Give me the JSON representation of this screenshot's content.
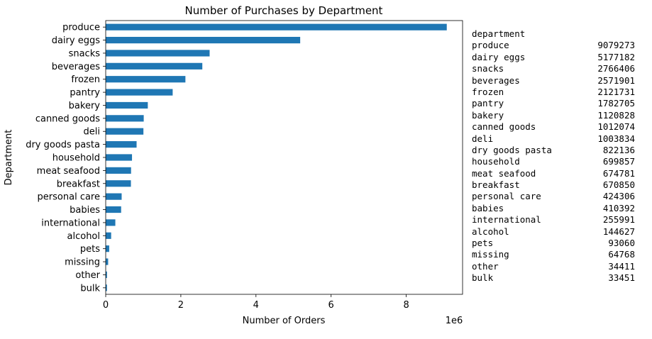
{
  "chart_data": {
    "type": "bar",
    "orientation": "horizontal",
    "title": "Number of Purchases by Department",
    "xlabel": "Number of Orders",
    "ylabel": "Department",
    "x_scale_label": "1e6",
    "xlim": [
      0,
      9.5
    ],
    "x_ticks": [
      "0",
      "2",
      "4",
      "6",
      "8"
    ],
    "grid": false,
    "bar_color": "#1f77b4",
    "categories": [
      "produce",
      "dairy eggs",
      "snacks",
      "beverages",
      "frozen",
      "pantry",
      "bakery",
      "canned goods",
      "deli",
      "dry goods pasta",
      "household",
      "meat seafood",
      "breakfast",
      "personal care",
      "babies",
      "international",
      "alcohol",
      "pets",
      "missing",
      "other",
      "bulk"
    ],
    "values": [
      9079273,
      5177182,
      2766406,
      2571901,
      2121731,
      1782705,
      1120828,
      1012074,
      1003834,
      822136,
      699857,
      674781,
      670850,
      424306,
      410392,
      255991,
      144627,
      93060,
      64768,
      34411,
      33451
    ]
  },
  "table": {
    "header": "department",
    "rows": [
      {
        "name": "produce",
        "count": "9079273"
      },
      {
        "name": "dairy eggs",
        "count": "5177182"
      },
      {
        "name": "snacks",
        "count": "2766406"
      },
      {
        "name": "beverages",
        "count": "2571901"
      },
      {
        "name": "frozen",
        "count": "2121731"
      },
      {
        "name": "pantry",
        "count": "1782705"
      },
      {
        "name": "bakery",
        "count": "1120828"
      },
      {
        "name": "canned goods",
        "count": "1012074"
      },
      {
        "name": "deli",
        "count": "1003834"
      },
      {
        "name": "dry goods pasta",
        "count": "822136"
      },
      {
        "name": "household",
        "count": "699857"
      },
      {
        "name": "meat seafood",
        "count": "674781"
      },
      {
        "name": "breakfast",
        "count": "670850"
      },
      {
        "name": "personal care",
        "count": "424306"
      },
      {
        "name": "babies",
        "count": "410392"
      },
      {
        "name": "international",
        "count": "255991"
      },
      {
        "name": "alcohol",
        "count": "144627"
      },
      {
        "name": "pets",
        "count": "93060"
      },
      {
        "name": "missing",
        "count": "64768"
      },
      {
        "name": "other",
        "count": "34411"
      },
      {
        "name": "bulk",
        "count": "33451"
      }
    ]
  }
}
